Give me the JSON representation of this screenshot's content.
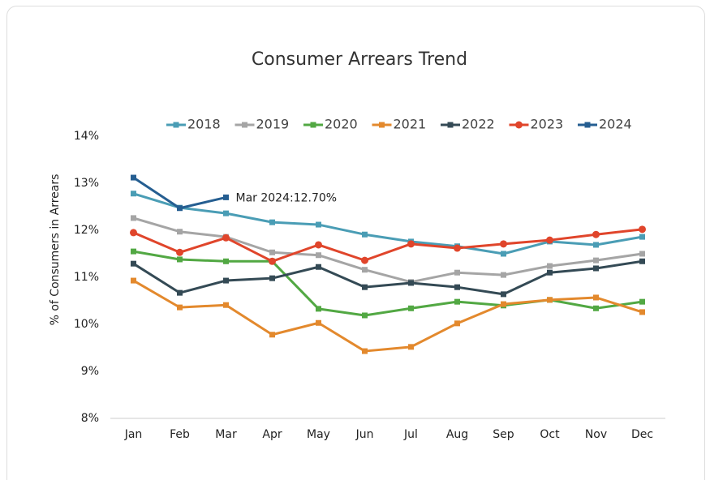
{
  "chart_data": {
    "type": "line",
    "title": "Consumer Arrears Trend",
    "y_label": "% of Consumers in Arrears",
    "categories": [
      "Jan",
      "Feb",
      "Mar",
      "Apr",
      "May",
      "Jun",
      "Jul",
      "Aug",
      "Sep",
      "Oct",
      "Nov",
      "Dec"
    ],
    "series": [
      {
        "name": "2018",
        "color": "#4a9db5",
        "marker": "square",
        "values": [
          12.78,
          12.48,
          12.36,
          12.17,
          12.12,
          11.91,
          11.76,
          11.66,
          11.5,
          11.76,
          11.69,
          11.86
        ]
      },
      {
        "name": "2019",
        "color": "#a5a5a5",
        "marker": "square",
        "values": [
          12.26,
          11.97,
          11.86,
          11.53,
          11.47,
          11.16,
          10.9,
          11.1,
          11.05,
          11.24,
          11.36,
          11.5
        ]
      },
      {
        "name": "2020",
        "color": "#52a843",
        "marker": "square",
        "values": [
          11.55,
          11.38,
          11.34,
          11.34,
          10.33,
          10.19,
          10.34,
          10.48,
          10.4,
          10.52,
          10.34,
          10.48
        ]
      },
      {
        "name": "2021",
        "color": "#e3892d",
        "marker": "square",
        "values": [
          10.93,
          10.36,
          10.41,
          9.78,
          10.03,
          9.43,
          9.52,
          10.02,
          10.43,
          10.52,
          10.57,
          10.26
        ]
      },
      {
        "name": "2022",
        "color": "#344a55",
        "marker": "square",
        "values": [
          11.29,
          10.67,
          10.93,
          10.98,
          11.22,
          10.79,
          10.88,
          10.79,
          10.64,
          11.1,
          11.19,
          11.34
        ]
      },
      {
        "name": "2023",
        "color": "#e0452b",
        "marker": "circle",
        "values": [
          11.95,
          11.53,
          11.84,
          11.34,
          11.69,
          11.36,
          11.71,
          11.62,
          11.71,
          11.79,
          11.91,
          12.02
        ]
      },
      {
        "name": "2024",
        "color": "#255e91",
        "marker": "square",
        "values": [
          13.12,
          12.47,
          12.7,
          null,
          null,
          null,
          null,
          null,
          null,
          null,
          null,
          null
        ]
      }
    ],
    "annotation": {
      "text": "Mar 2024:12.70%",
      "series": 6,
      "index": 2
    },
    "ylim": [
      8,
      14
    ],
    "yticks": [
      {
        "value": 8,
        "label": "8%"
      },
      {
        "value": 9,
        "label": "9%"
      },
      {
        "value": 10,
        "label": "10%"
      },
      {
        "value": 11,
        "label": "11%"
      },
      {
        "value": 12,
        "label": "12%"
      },
      {
        "value": 13,
        "label": "13%"
      },
      {
        "value": 14,
        "label": "14%"
      }
    ],
    "grid": false,
    "legend": "top"
  }
}
